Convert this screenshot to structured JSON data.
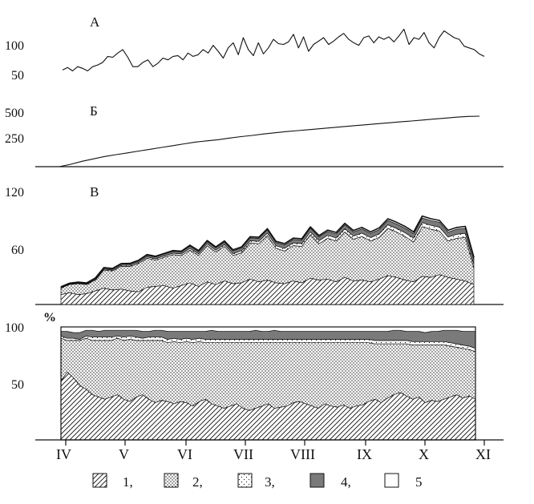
{
  "chart_data": [
    {
      "panel": "А",
      "type": "line",
      "yticks": [
        100,
        50
      ],
      "ylim": [
        0,
        110
      ],
      "series": [
        {
          "values": [
            56,
            59,
            55,
            60,
            58,
            55,
            60,
            62,
            65,
            72,
            71,
            76,
            80,
            71,
            60,
            60,
            65,
            68,
            60,
            64,
            70,
            68,
            72,
            73,
            68,
            76,
            72,
            74,
            80,
            76,
            85,
            78,
            70,
            82,
            88,
            74,
            94,
            80,
            73,
            88,
            75,
            82,
            92,
            87,
            86,
            89,
            98,
            82,
            95,
            78,
            86,
            90,
            94,
            86,
            90,
            95,
            99,
            92,
            88,
            85,
            94,
            96,
            88,
            95,
            92,
            95,
            89,
            96,
            104,
            86,
            94,
            92,
            100,
            88,
            82,
            94,
            102,
            98,
            94,
            92,
            84,
            82,
            80,
            75,
            72
          ]
        }
      ]
    },
    {
      "panel": "Б",
      "type": "line",
      "yticks": [
        500,
        250
      ],
      "ylim": [
        0,
        520
      ],
      "series": [
        {
          "values": [
            0,
            20,
            45,
            65,
            85,
            100,
            115,
            130,
            145,
            160,
            175,
            190,
            205,
            215,
            225,
            238,
            250,
            260,
            272,
            282,
            292,
            300,
            308,
            316,
            325,
            333,
            341,
            349,
            357,
            365,
            373,
            380,
            388,
            396,
            404,
            412,
            418,
            420
          ]
        }
      ]
    },
    {
      "panel": "В",
      "type": "area",
      "yticks": [
        120,
        60
      ],
      "ylim": [
        0,
        130
      ],
      "series": [
        {
          "values": [
            11,
            13,
            11,
            12,
            15,
            18,
            16,
            17,
            15,
            14,
            19,
            20,
            21,
            18,
            21,
            24,
            20,
            25,
            22,
            26,
            23,
            24,
            28,
            25,
            27,
            24,
            23,
            26,
            24,
            29,
            27,
            28,
            25,
            30,
            26,
            27,
            25,
            28,
            32,
            30,
            27,
            25,
            31,
            30,
            33,
            30,
            28,
            26,
            22
          ]
        },
        {
          "values": [
            7,
            9,
            12,
            10,
            12,
            20,
            21,
            25,
            27,
            31,
            32,
            29,
            31,
            37,
            33,
            36,
            34,
            40,
            36,
            38,
            31,
            33,
            40,
            42,
            49,
            38,
            36,
            39,
            40,
            48,
            40,
            45,
            45,
            50,
            46,
            48,
            45,
            46,
            52,
            50,
            48,
            44,
            55,
            53,
            48,
            40,
            45,
            48,
            18
          ]
        },
        {
          "values": [
            0.5,
            0.5,
            0.6,
            0.6,
            0.8,
            1,
            1,
            1.2,
            1.2,
            1.4,
            1.5,
            1.5,
            1.6,
            1.6,
            1.8,
            2,
            2,
            2,
            2,
            2.2,
            2.2,
            2.4,
            2.4,
            2.6,
            2.8,
            2.8,
            3,
            3,
            3.2,
            3.2,
            3.4,
            3.4,
            3.5,
            3.6,
            3.6,
            3.8,
            3.8,
            4,
            4,
            4,
            4.2,
            4.2,
            4.4,
            4.4,
            4.4,
            4.5,
            4.5,
            4.6,
            4.6
          ]
        },
        {
          "values": [
            0.6,
            0.6,
            0.7,
            0.8,
            1,
            1.2,
            1.2,
            1.4,
            1.5,
            1.6,
            1.8,
            1.9,
            2,
            2,
            2.2,
            2.4,
            2.5,
            2.6,
            2.6,
            2.8,
            3,
            3,
            3.2,
            3.4,
            3.6,
            3.6,
            3.8,
            3.8,
            4,
            4,
            4.2,
            4.2,
            4.4,
            4.4,
            4.5,
            4.6,
            4.6,
            4.8,
            4.8,
            5,
            5,
            5,
            5.2,
            5.2,
            5.4,
            5.4,
            5.5,
            5.6,
            5.6
          ]
        },
        {
          "values": [
            0.4,
            0.4,
            0.4,
            0.5,
            0.5,
            0.6,
            0.6,
            0.6,
            0.7,
            0.7,
            0.8,
            0.8,
            0.8,
            0.9,
            0.9,
            1,
            1,
            1,
            1,
            1.1,
            1.1,
            1.2,
            1.2,
            1.2,
            1.3,
            1.3,
            1.4,
            1.4,
            1.4,
            1.5,
            1.5,
            1.5,
            1.6,
            1.6,
            1.6,
            1.7,
            1.7,
            1.8,
            1.8,
            1.8,
            1.9,
            1.9,
            2,
            2,
            2,
            2,
            2,
            2,
            2
          ]
        }
      ]
    },
    {
      "panel": "%",
      "type": "area",
      "ylabel": "%",
      "yticks": [
        100,
        50
      ],
      "ylim": [
        0,
        100
      ],
      "series": [
        {
          "values": [
            52,
            60,
            55,
            48,
            45,
            40,
            38,
            36,
            38,
            40,
            36,
            34,
            38,
            40,
            36,
            33,
            35,
            34,
            32,
            34,
            33,
            30,
            34,
            36,
            32,
            30,
            28,
            30,
            32,
            28,
            26,
            28,
            30,
            32,
            28,
            29,
            30,
            33,
            34,
            32,
            30,
            28,
            32,
            30,
            29,
            31,
            28,
            30,
            31,
            34,
            36,
            33,
            37,
            40,
            42,
            39,
            36,
            38,
            33,
            35,
            34,
            36,
            38,
            40,
            37,
            39,
            36
          ]
        },
        {
          "values": [
            38,
            28,
            33,
            40,
            45,
            48,
            50,
            52,
            50,
            50,
            52,
            55,
            50,
            48,
            52,
            55,
            53,
            52,
            55,
            52,
            54,
            56,
            53,
            50,
            54,
            56,
            58,
            56,
            54,
            58,
            60,
            58,
            56,
            54,
            58,
            57,
            56,
            53,
            52,
            54,
            56,
            58,
            54,
            56,
            57,
            55,
            58,
            56,
            55,
            52,
            49,
            52,
            48,
            45,
            43,
            46,
            48,
            46,
            51,
            49,
            50,
            48,
            45,
            42,
            44,
            41,
            42
          ]
        },
        {
          "values": [
            2,
            2,
            2,
            1,
            2,
            3,
            3,
            3,
            3,
            2,
            3,
            3,
            3,
            2,
            3,
            3,
            3,
            3,
            3,
            3,
            3,
            3,
            3,
            3,
            3,
            3,
            3,
            3,
            3,
            3,
            3,
            3,
            3,
            3,
            3,
            3,
            3,
            3,
            3,
            3,
            3,
            3,
            3,
            3,
            3,
            3,
            3,
            3,
            3,
            3,
            3,
            3,
            3,
            3,
            3,
            3,
            3,
            3,
            3,
            3,
            3,
            3,
            3,
            3,
            3,
            3,
            3
          ]
        },
        {
          "values": [
            4,
            6,
            5,
            6,
            5,
            6,
            5,
            6,
            6,
            5,
            6,
            5,
            6,
            6,
            5,
            6,
            6,
            7,
            6,
            7,
            6,
            7,
            6,
            7,
            8,
            7,
            7,
            7,
            7,
            7,
            7,
            8,
            7,
            7,
            8,
            7,
            7,
            7,
            7,
            7,
            7,
            7,
            7,
            7,
            7,
            7,
            7,
            7,
            7,
            7,
            8,
            8,
            8,
            9,
            9,
            8,
            9,
            9,
            8,
            9,
            9,
            10,
            11,
            12,
            12,
            13,
            15
          ]
        },
        {
          "values": [
            4,
            4,
            5,
            5,
            3,
            3,
            4,
            3,
            3,
            3,
            3,
            3,
            3,
            4,
            4,
            3,
            3,
            4,
            4,
            4,
            4,
            4,
            4,
            4,
            3,
            4,
            4,
            4,
            4,
            4,
            4,
            3,
            4,
            4,
            3,
            4,
            4,
            4,
            4,
            4,
            4,
            4,
            4,
            4,
            4,
            4,
            4,
            4,
            4,
            4,
            4,
            4,
            4,
            3,
            3,
            4,
            4,
            4,
            5,
            4,
            4,
            3,
            3,
            3,
            4,
            4,
            4
          ]
        }
      ]
    }
  ],
  "month_labels": [
    "IV",
    "V",
    "VI",
    "VII",
    "VIII",
    "IX",
    "X",
    "XI"
  ],
  "legend": [
    {
      "number": "1,",
      "pattern": "hatch"
    },
    {
      "number": "2,",
      "pattern": "dense-dots"
    },
    {
      "number": "3,",
      "pattern": "sparse-dots"
    },
    {
      "number": "4,",
      "pattern": "dark-gray"
    },
    {
      "number": "5",
      "pattern": "white"
    }
  ],
  "colors": {
    "ink": "#111111",
    "gray": "#7a7a7a",
    "paper": "#ffffff"
  }
}
